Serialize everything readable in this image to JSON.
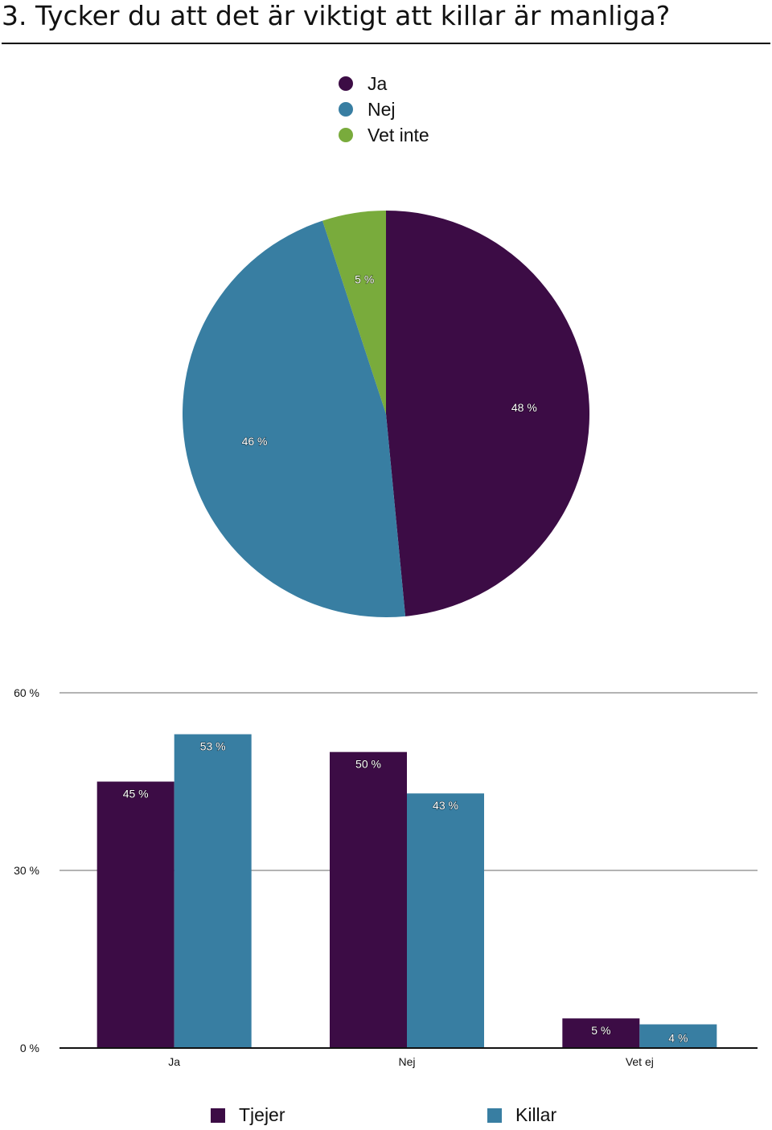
{
  "title": "3. Tycker du att det är viktigt att killar är manliga?",
  "colors": {
    "ja": "#3c0c45",
    "nej": "#387ea2",
    "vet_inte": "#79ab3c",
    "tjejer": "#3c0c45",
    "killar": "#387ea2",
    "grid": "#b3b3b3",
    "axis": "#111111"
  },
  "chart_data": [
    {
      "type": "pie",
      "legend": [
        "Ja",
        "Nej",
        "Vet inte"
      ],
      "slices": [
        {
          "label": "Ja",
          "value": 48,
          "value_label": "48 %",
          "color": "#3c0c45"
        },
        {
          "label": "Nej",
          "value": 46,
          "value_label": "46 %",
          "color": "#387ea2"
        },
        {
          "label": "Vet inte",
          "value": 5,
          "value_label": "5 %",
          "color": "#79ab3c"
        }
      ]
    },
    {
      "type": "bar",
      "categories": [
        "Ja",
        "Nej",
        "Vet ej"
      ],
      "series": [
        {
          "name": "Tjejer",
          "values": [
            45,
            50,
            5
          ],
          "value_labels": [
            "45 %",
            "50 %",
            "5 %"
          ],
          "color": "#3c0c45"
        },
        {
          "name": "Killar",
          "values": [
            53,
            43,
            4
          ],
          "value_labels": [
            "53 %",
            "43 %",
            "4 %"
          ],
          "color": "#387ea2"
        }
      ],
      "ylim": [
        0,
        60
      ],
      "yticks": [
        0,
        30,
        60
      ],
      "ytick_labels": [
        "0 %",
        "30 %",
        "60 %"
      ],
      "grid": true,
      "legend_position": "bottom"
    }
  ]
}
